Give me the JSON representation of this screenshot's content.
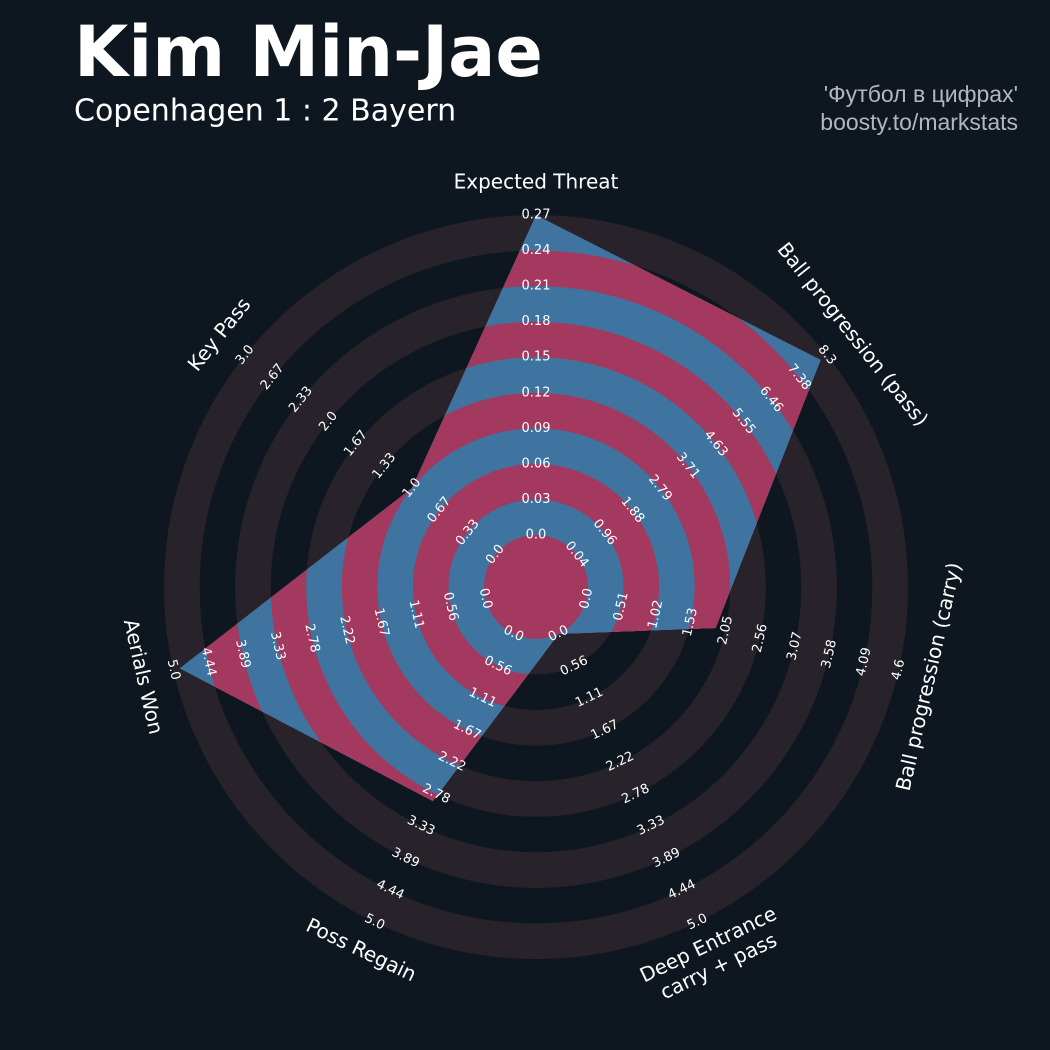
{
  "title": "Kim Min-Jae",
  "subtitle": "Copenhagen 1 : 2 Bayern",
  "credits": [
    "'Футбол в цифрах'",
    "boosty.to/markstats"
  ],
  "chart_data": {
    "type": "radar",
    "categories": [
      [
        "Expected Threat"
      ],
      [
        "Ball progression (pass)"
      ],
      [
        "Ball progression (carry)"
      ],
      [
        "Deep Entrance",
        "carry + pass"
      ],
      [
        "Poss Regain"
      ],
      [
        "Aerials Won"
      ],
      [
        "Key Pass"
      ]
    ],
    "values": [
      0.27,
      8.1,
      1.9,
      0,
      2.9,
      4.9,
      1
    ],
    "ranges": [
      [
        0,
        0.27
      ],
      [
        0.04,
        8.3
      ],
      [
        0,
        4.6
      ],
      [
        0,
        5
      ],
      [
        0,
        5
      ],
      [
        0,
        5
      ],
      [
        0,
        3
      ]
    ],
    "ticks": [
      [
        {
          "value": 0,
          "label": "0.0"
        },
        0.03,
        0.06,
        0.09,
        0.12,
        0.15,
        0.18,
        0.21,
        0.24,
        0.27
      ],
      [
        0.04,
        0.96,
        1.88,
        2.79,
        3.71,
        4.63,
        5.55,
        6.46,
        7.38,
        8.3
      ],
      [
        {
          "value": 0,
          "label": "0.0"
        },
        0.51,
        1.02,
        1.53,
        2.05,
        2.56,
        3.07,
        3.58,
        4.09,
        4.6
      ],
      [
        {
          "value": 0,
          "label": "0.0"
        },
        0.56,
        1.11,
        1.67,
        2.22,
        2.78,
        3.33,
        3.89,
        4.44,
        {
          "value": 5,
          "label": "5.0"
        }
      ],
      [
        {
          "value": 0,
          "label": "0.0"
        },
        0.56,
        1.11,
        1.67,
        2.22,
        2.78,
        3.33,
        3.89,
        4.44,
        {
          "value": 5,
          "label": "5.0"
        }
      ],
      [
        {
          "value": 0,
          "label": "0.0"
        },
        0.56,
        1.11,
        1.67,
        2.22,
        2.78,
        3.33,
        3.89,
        4.44,
        {
          "value": 5,
          "label": "5.0"
        }
      ],
      [
        {
          "value": 0,
          "label": "0.0"
        },
        0.33,
        0.67,
        {
          "value": 1,
          "label": "1.0"
        },
        1.33,
        1.67,
        {
          "value": 2,
          "label": "2.0"
        },
        2.33,
        2.67,
        {
          "value": 3,
          "label": "3.0"
        }
      ]
    ],
    "colors": {
      "fill_a": "#3f74a0",
      "fill_b": "#a3395e",
      "ring": "#28232a",
      "background": "#0e1720"
    }
  }
}
